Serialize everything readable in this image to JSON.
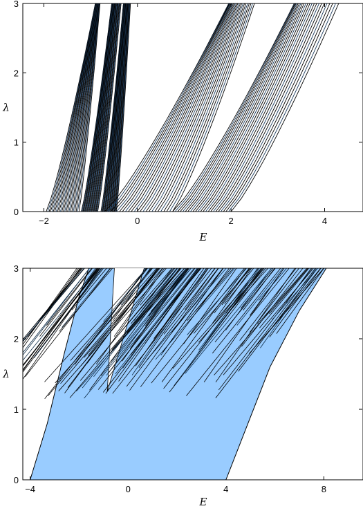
{
  "chart_data": [
    {
      "type": "line",
      "xlabel": "E",
      "ylabel": "λ",
      "xlim": [
        -2.45,
        4.82
      ],
      "ylim": [
        0,
        3
      ],
      "xticks": [
        -2,
        0,
        2,
        4
      ],
      "yticks": [
        0,
        1,
        2,
        3
      ],
      "fill_color": "#99ccff",
      "line_color": "#000000",
      "groups": [
        {
          "start": [
            -1.95,
            -1.25
          ],
          "end_at_top": [
            -0.9,
            -0.8
          ]
        },
        {
          "start": [
            -1.2,
            -0.85
          ],
          "end_at_top": [
            -0.55,
            -0.35
          ]
        },
        {
          "start": [
            -0.78,
            -0.45
          ],
          "end_at_top": [
            -0.3,
            -0.15
          ]
        },
        {
          "start": [
            -0.7,
            0.75
          ],
          "end_at_top": [
            1.95,
            2.5
          ]
        },
        {
          "start": [
            0.75,
            2.0
          ],
          "end_at_top": [
            3.35,
            4.3
          ]
        }
      ]
    },
    {
      "type": "area",
      "xlabel": "E",
      "ylabel": "λ",
      "xlim": [
        -4.3,
        9.6
      ],
      "ylim": [
        0,
        3
      ],
      "xticks": [
        -4,
        0,
        4,
        8
      ],
      "yticks": [
        0,
        1,
        2,
        3
      ],
      "fill_color": "#99ccff",
      "line_color": "#000000",
      "boundary_left": [
        [
          -4.0,
          0.0
        ],
        [
          -3.3,
          0.8
        ],
        [
          -2.6,
          1.8
        ],
        [
          -2.0,
          2.6
        ],
        [
          -1.6,
          3.0
        ]
      ],
      "boundary_right": [
        [
          4.0,
          0.0
        ],
        [
          4.9,
          0.8
        ],
        [
          5.8,
          1.6
        ],
        [
          7.0,
          2.4
        ],
        [
          8.1,
          3.0
        ]
      ],
      "gap_tip": [
        -0.85,
        1.25
      ]
    }
  ]
}
